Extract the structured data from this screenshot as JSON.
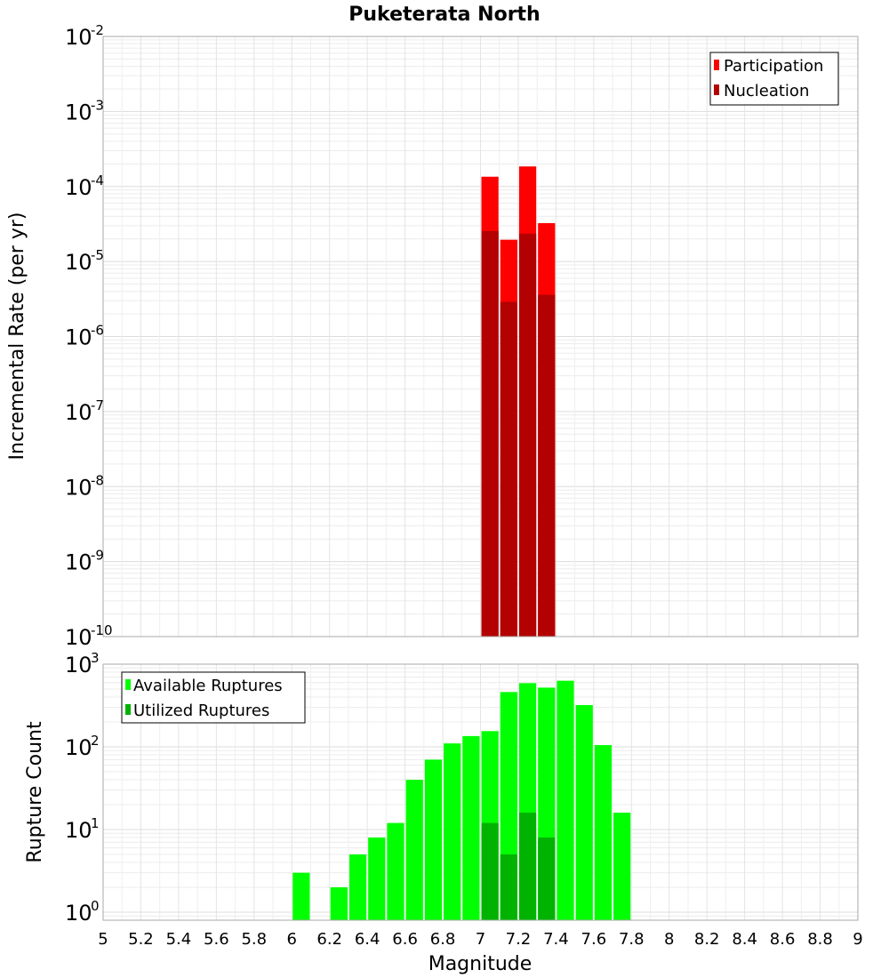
{
  "title": "Puketerata North",
  "x_axis": {
    "label": "Magnitude",
    "min": 5,
    "max": 9,
    "tick_labels": [
      "5",
      "5.2",
      "5.4",
      "5.6",
      "5.8",
      "6",
      "6.2",
      "6.4",
      "6.6",
      "6.8",
      "7",
      "7.2",
      "7.4",
      "7.6",
      "7.8",
      "8",
      "8.2",
      "8.4",
      "8.6",
      "8.8",
      "9"
    ]
  },
  "chart_data": [
    {
      "type": "bar",
      "ylabel": "Incremental Rate (per yr)",
      "xlabel": "",
      "yscale": "log",
      "ylim": [
        1e-10,
        0.01
      ],
      "ytick_exponents": [
        "-10",
        "-9",
        "-8",
        "-7",
        "-6",
        "-5",
        "-4",
        "-3",
        "-2"
      ],
      "legend_position": "top-right",
      "bar_width": 0.1,
      "series": [
        {
          "name": "Participation",
          "color": "#ff0000",
          "x": [
            7.05,
            7.15,
            7.25,
            7.35
          ],
          "values": [
            0.000135,
            1.95e-05,
            0.000185,
            3.25e-05
          ]
        },
        {
          "name": "Nucleation",
          "color": "#b30000",
          "x": [
            7.05,
            7.15,
            7.25,
            7.35
          ],
          "values": [
            2.55e-05,
            2.9e-06,
            2.35e-05,
            3.6e-06
          ]
        }
      ]
    },
    {
      "type": "bar",
      "ylabel": "Rupture Count",
      "xlabel": "Magnitude",
      "yscale": "log",
      "ylim": [
        0.8,
        1000
      ],
      "ytick_exponents": [
        "0",
        "1",
        "2",
        "3"
      ],
      "legend_position": "top-left",
      "bar_width": 0.1,
      "series": [
        {
          "name": "Available Ruptures",
          "color": "#00ff00",
          "x": [
            6.05,
            6.25,
            6.35,
            6.45,
            6.55,
            6.65,
            6.75,
            6.85,
            6.95,
            7.05,
            7.15,
            7.25,
            7.35,
            7.45,
            7.55,
            7.65,
            7.75
          ],
          "values": [
            3,
            2,
            5,
            8,
            12,
            40,
            70,
            110,
            135,
            155,
            460,
            590,
            520,
            630,
            320,
            105,
            16
          ]
        },
        {
          "name": "Utilized Ruptures",
          "color": "#00b300",
          "x": [
            7.05,
            7.15,
            7.25,
            7.35
          ],
          "values": [
            12,
            5,
            16,
            8
          ]
        }
      ]
    }
  ]
}
